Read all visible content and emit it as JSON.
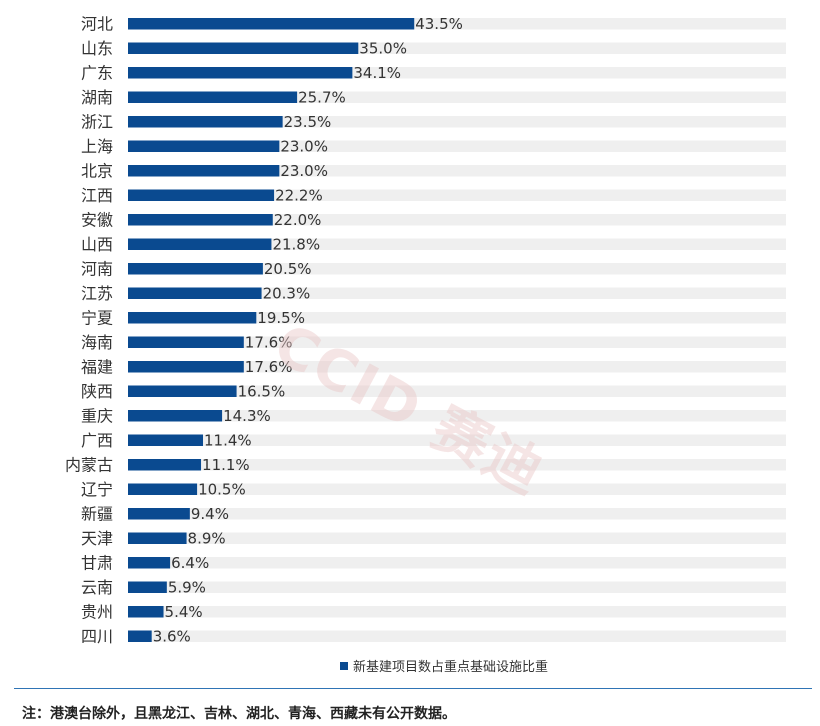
{
  "chart_data": {
    "type": "bar",
    "orientation": "horizontal",
    "categories": [
      "河北",
      "山东",
      "广东",
      "湖南",
      "浙江",
      "上海",
      "北京",
      "江西",
      "安徽",
      "山西",
      "河南",
      "江苏",
      "宁夏",
      "海南",
      "福建",
      "陕西",
      "重庆",
      "广西",
      "内蒙古",
      "辽宁",
      "新疆",
      "天津",
      "甘肃",
      "云南",
      "贵州",
      "四川"
    ],
    "series": [
      {
        "name": "新基建项目数占重点基础设施比重",
        "values": [
          43.5,
          35.0,
          34.1,
          25.7,
          23.5,
          23.0,
          23.0,
          22.2,
          22.0,
          21.8,
          20.5,
          20.3,
          19.5,
          17.6,
          17.6,
          16.5,
          14.3,
          11.4,
          11.1,
          10.5,
          9.4,
          8.9,
          6.4,
          5.9,
          5.4,
          3.6
        ],
        "labels": [
          "43.5%",
          "35.0%",
          "34.1%",
          "25.7%",
          "23.5%",
          "23.0%",
          "23.0%",
          "22.2%",
          "22.0%",
          "21.8%",
          "20.5%",
          "20.3%",
          "19.5%",
          "17.6%",
          "17.6%",
          "16.5%",
          "14.3%",
          "11.4%",
          "11.1%",
          "10.5%",
          "9.4%",
          "8.9%",
          "6.4%",
          "5.9%",
          "5.4%",
          "3.6%"
        ]
      }
    ],
    "xlim": [
      0,
      100
    ],
    "legend_position": "bottom",
    "bar_color": "#0a4a90",
    "track_color": "#efefef"
  },
  "legend": {
    "label": "新基建项目数占重点基础设施比重"
  },
  "footnote": "注：港澳台除外，且黑龙江、吉林、湖北、青海、西藏未有公开数据。",
  "watermark": "CCID 赛迪"
}
